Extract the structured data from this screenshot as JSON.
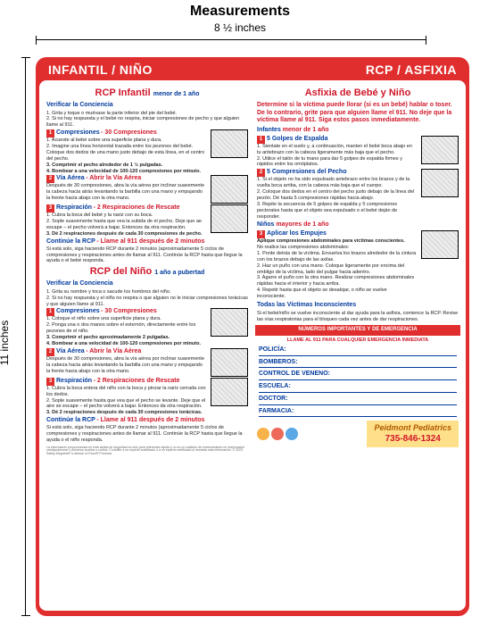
{
  "measurements": {
    "title": "Measurements",
    "width_label": "8 ½ inches",
    "height_label": "11 inches"
  },
  "colors": {
    "brand_red": "#e02e2e",
    "text_red": "#d0182a",
    "text_blue": "#003a9d",
    "logo_bg": "#ffe08a",
    "logo_name": "#b05a00"
  },
  "header": {
    "left": "INFANTIL / NIÑO",
    "right": "RCP / ASFIXIA"
  },
  "left_col": {
    "s1_title": "RCP Infantil",
    "s1_age": "menor de 1 año",
    "check_title": "Verificar la Conciencia",
    "check_lines": [
      "1. Grita y toque o muévase la parte inferior del pie del bebé.",
      "2. Si no hay respuesta y el bebé no respira, iniciar compresiones de pecho y que alguien llame al 911."
    ],
    "step1_label": "Compresiones",
    "step1_sub": "- 30 Compresiones",
    "step1_lines": [
      "1. Acueste al bebé sobre una superficie plana y dura.",
      "2. Imagine una línea horizontal trazada entre los pezones del bebé. Coloque dos dedos de una mano justo debajo de esta línea, en el centro del pecho.",
      "3. Comprimir el pecho alrededor de 1 ½ pulgadas.",
      "4. Bombear a una velocidad de 100-120 compresiones por minuto."
    ],
    "step2_label": "Vía Aérea",
    "step2_sub": "- Abrir la Vía Aérea",
    "step2_lines": [
      "Después de 30 compresiones, abra la vía aérea por inclinar suavemente la cabeza hacia atrás levantando la barbilla con una mano y empujando la frente hacia abajo con la otra mano."
    ],
    "step3_label": "Respiración",
    "step3_sub": "- 2 Respiraciones de Rescate",
    "step3_lines": [
      "1. Cubra la boca del bebé y la nariz con su boca.",
      "2. Sople suavemente hasta que vea la subida de el pecho. Deje que ae escape – el pecho volverá a bajar. Entonces da otra respiración.",
      "3. Dé 2 respiraciones después de cada 30 compresiones de pecho."
    ],
    "continue_title": "Continúe la RCP",
    "continue_sub": "- Llame al 911 después de 2 minutos",
    "continue_text": "Si está solo, siga haciendo RCP durante 2 minutos (aproximadamente 5 ciclos de compresiones y respiraciones antes de llamar al 911. Continúe la RCP hasta que llegue la ayuda o el bebé responda.",
    "s2_title": "RCP del Niño",
    "s2_age": "1 año a pubertad",
    "check2_lines": [
      "1. Grita su nombre y toca o sacude los hombros del niño.",
      "2. Si no hay respuesta y el niño no respira o que alguien no le iniciar compresiones torácicas y que alguien llame al 911."
    ],
    "n_step1_lines": [
      "1. Coloque el niño sobre una superficie plana y dura.",
      "2. Ponga una o dos manos sobre el esternón, directamente entre los pezones de el niño.",
      "3. Comprimir el pecho aproximadamente 2 pulgadas.",
      "4. Bombear a una velocidad de 100-120 compresiones por minuto."
    ],
    "n_step2_lines": [
      "Después de 30 compresiones, abra la vía aérea por inclinar suavemente la cabeza hacia atrás levantando la barbilla con una mano y empujando la frente hacia abajo con la otra mano."
    ],
    "n_step3_lines": [
      "1. Cubra la boca entera del niño con la boca y pinzar la nariz cerrada con los dedos.",
      "2. Sople suavemente hasta que vea que el pecho se levante. Deje que el aire se escape – el pecho volverá a bajar. Entonces da otra respiración.",
      "3. Dé 2 respiraciones después de cada 30 compresiones torácicas."
    ],
    "n_continue_text": "Si está solo, siga haciendo RCP durante 2 minutos (aproximadamente 5 ciclos de compresiones y respiraciones antes de llamar al 911. Continúe la RCP hasta que llegue la ayuda o el niño responda."
  },
  "right_col": {
    "s1_title": "Asfixia de Bebé y Niño",
    "intro": "Determine si la víctima puede llorar (si es un bebé) hablar o toser. De lo contrario, grite para que alguien llame el 911. No deje que la víctima llame al 911. Siga estos pasos inmediatamente.",
    "infants_label": "Infantes",
    "infants_age": "menor de 1 año",
    "r_step1_label": "5 Golpes de Espalda",
    "r_step1_lines": [
      "1. Sientate en el suelo y, a continuación, manten el bebé boca abajo en tu antebrazo con la cabeza ligeramente más baja que el pecho.",
      "2. Utilice el talón de tu mano para dar 5 golpes de espalda firmes y rápidos entre los omóplatos."
    ],
    "r_step2_label": "5 Compresiones del Pecho",
    "r_step2_lines": [
      "1. Si el objeto no ha sido expulsado antebrazo entre los brazos y de la vuelta boca arriba, con la cabeza más baja que el cuerpo.",
      "2. Coloque dos dedos en el centro del pecho justo debajo de la línea del pezón. Dé hasta 5 compresiones rápidas hacia abajo.",
      "3. Repite la secuencia de 5 golpes de espalda y 5 compresiones pectorales hasta que el objeto sea expulsado o el bebé deján de responder."
    ],
    "ninos_label": "Niños",
    "ninos_age": "mayores de 1 año",
    "r_step3_label": "Aplicar los Empujes",
    "r_step3_lead": "Aplique compresiones abdominales para víctimas conscientes.",
    "r_step3_note": "No realice las compresiones abdominales:",
    "r_step3_lines": [
      "1. Ponte detrás de la víctima. Envuelva los brazos alrededor de la cintura con los brazos debajo de las axilas.",
      "2. Haz un puño con una mano. Coloque ligeramente por encima del ombligo de la víctima, lado del pulgar hacia adentro.",
      "3. Agarre el puño con la otra mano. Realizar compresiones abdominales rápidas hacia el interior y hacia arriba.",
      "4. Repetir hasta que el objeto se desalojar, o niño se vuelve inconsciente."
    ],
    "all_victims_title": "Todas las Víctimas Inconscientes",
    "all_victims_text": "Si el bebé/niño se vuelve inconsciente al dar ayuda para la asfixia, comience la RCP. Revise las vías respiratorias para el bloqueo cada vez antes de dar respiraciones.",
    "emergency_title": "NÚMEROS IMPORTANTES Y DE EMERGENCIA",
    "emergency_sub": "LLAME AL 911 PARA CUALQUIER EMERGENCIA INMEDIATA",
    "contacts": [
      "POLICÍA:",
      "BOMBEROS:",
      "CONTROL DE VENENO:",
      "ESCUELA:",
      "DOCTOR:",
      "FARMACIA:"
    ],
    "logo_name": "Peidmont Pediatrics",
    "logo_phone": "735-846-1324"
  },
  "fineprint": "La información proporcionada en esta tarjeta de seguridad es sólo para referencia rápida y no es un sustituto de entrenamiento en reanimación cardiopulmonar o primeros auxilios o cursos. Consulte a un experto cualificado o a un experto certificado si necesita más información. © 2023 Safety Magnets® a division of Excel® Products"
}
